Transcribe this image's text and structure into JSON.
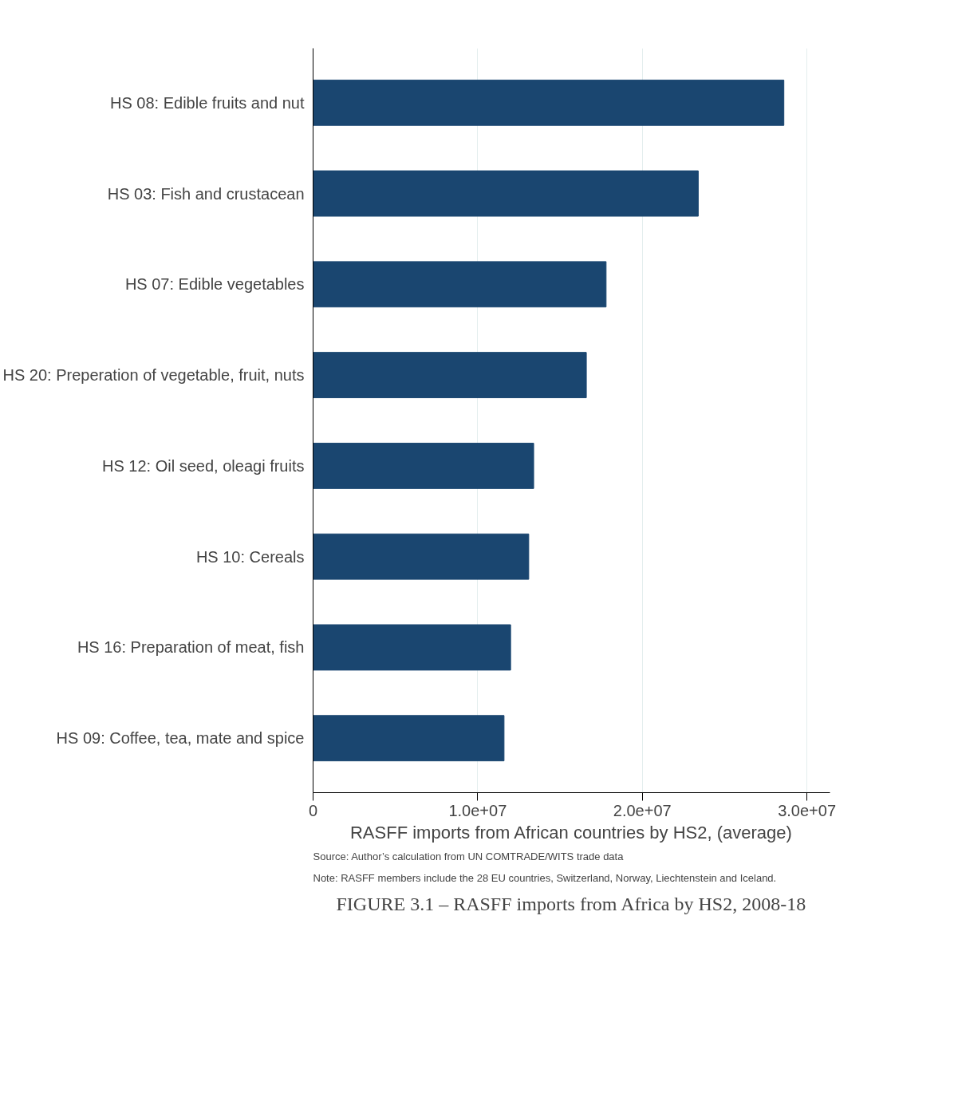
{
  "chart_data": {
    "type": "bar",
    "orientation": "horizontal",
    "title": "FIGURE 3.1 – RASFF imports from Africa by HS2, 2008-18",
    "xlabel": "RASFF imports from African countries by HS2, (average)",
    "categories": [
      "HS 08: Edible fruits and nut",
      "HS 03: Fish and crustacean",
      "HS 07: Edible vegetables",
      "HS 20: Preperation of vegetable, fruit, nuts",
      "HS 12: Oil seed, oleagi fruits",
      "HS 10: Cereals",
      "HS 16: Preparation of meat, fish",
      "HS 09: Coffee, tea, mate and spice"
    ],
    "values": [
      28600000,
      23400000,
      17800000,
      16600000,
      13400000,
      13100000,
      12000000,
      11600000
    ],
    "color": "#1a4670",
    "xlim": [
      0,
      31400000
    ],
    "xticks": [
      0,
      {
        "value": 10000000,
        "label": "1.0e+07"
      },
      {
        "value": 20000000,
        "label": "2.0e+07"
      },
      {
        "value": 30000000,
        "label": "3.0e+07"
      }
    ],
    "grid": "x",
    "annotations": [
      "Source: Author’s calculation from UN COMTRADE/WITS trade data",
      "Note: RASFF members include the 28 EU countries, Switzerland, Norway, Liechtenstein and Iceland."
    ]
  }
}
